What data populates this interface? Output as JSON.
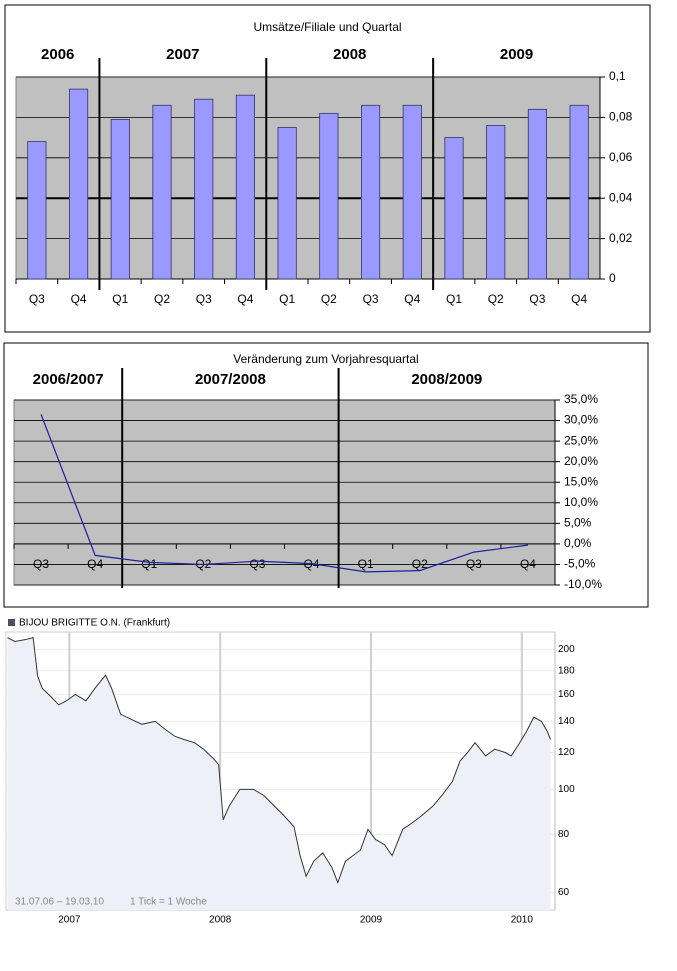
{
  "chart_data": [
    {
      "type": "bar",
      "title": "Umsätze/Filiale und Quartal",
      "group_labels": [
        "2006",
        "2007",
        "2008",
        "2009"
      ],
      "categories": [
        "Q3",
        "Q4",
        "Q1",
        "Q2",
        "Q3",
        "Q4",
        "Q1",
        "Q2",
        "Q3",
        "Q4",
        "Q1",
        "Q2",
        "Q3",
        "Q4"
      ],
      "values": [
        0.068,
        0.094,
        0.079,
        0.086,
        0.089,
        0.091,
        0.075,
        0.082,
        0.086,
        0.086,
        0.07,
        0.076,
        0.084,
        0.086
      ],
      "color": "#9999ff",
      "ylim": [
        0,
        0.1
      ],
      "yticks": [
        0,
        {
          "value": 0.02,
          "label": "0,02"
        },
        {
          "value": 0.04,
          "label": "0,04"
        },
        {
          "value": 0.06,
          "label": "0,06"
        },
        {
          "value": 0.08,
          "label": "0,08"
        },
        {
          "value": 0.1,
          "label": "0,1"
        }
      ],
      "reference_line": 0.04,
      "grid": true
    },
    {
      "type": "line",
      "title": "Veränderung zum Vorjahresquartal",
      "group_labels": [
        "2006/2007",
        "2007/2008",
        "2008/2009"
      ],
      "categories": [
        "Q3",
        "Q4",
        "Q1",
        "Q2",
        "Q3",
        "Q4",
        "Q1",
        "Q2",
        "Q3",
        "Q4"
      ],
      "values": [
        31.5,
        -2.8,
        -4.5,
        -5.0,
        -4.2,
        -4.8,
        -6.8,
        -6.5,
        -2.0,
        -0.3
      ],
      "color": "#1f1fa0",
      "ylim": [
        -10,
        35
      ],
      "yticks": [
        {
          "value": -10,
          "label": "-10,0%"
        },
        {
          "value": -5,
          "label": "-5,0%"
        },
        {
          "value": 0,
          "label": "0,0%"
        },
        {
          "value": 5,
          "label": "5,0%"
        },
        {
          "value": 10,
          "label": "10,0%"
        },
        {
          "value": 15,
          "label": "15,0%"
        },
        {
          "value": 20,
          "label": "20,0%"
        },
        {
          "value": 25,
          "label": "25,0%"
        },
        {
          "value": 30,
          "label": "30,0%"
        },
        {
          "value": 35,
          "label": "35,0%"
        }
      ],
      "grid": true
    },
    {
      "type": "line",
      "annotations": [
        "31.07.06 – 19.03.10",
        "1 Tick = 1 Woche"
      ],
      "x": [
        2006.59,
        2006.64,
        2006.71,
        2006.76,
        2006.79,
        2006.82,
        2006.88,
        2006.93,
        2006.98,
        2007.04,
        2007.11,
        2007.17,
        2007.24,
        2007.28,
        2007.34,
        2007.4,
        2007.48,
        2007.57,
        2007.63,
        2007.7,
        2007.76,
        2007.83,
        2007.89,
        2007.96,
        2007.99,
        2008.02,
        2008.06,
        2008.13,
        2008.22,
        2008.29,
        2008.36,
        2008.42,
        2008.49,
        2008.53,
        2008.57,
        2008.62,
        2008.68,
        2008.74,
        2008.78,
        2008.83,
        2008.88,
        2008.93,
        2008.98,
        2009.03,
        2009.09,
        2009.14,
        2009.21,
        2009.28,
        2009.34,
        2009.41,
        2009.47,
        2009.54,
        2009.59,
        2009.64,
        2009.69,
        2009.76,
        2009.82,
        2009.89,
        2009.93,
        2009.98,
        2010.03,
        2010.08,
        2010.13,
        2010.17,
        2010.19
      ],
      "series": [
        {
          "name": "BIJOU BRIGITTE O.N. (Frankfurt)",
          "color": "#333333",
          "values": [
            212,
            208,
            210,
            212,
            175,
            165,
            158,
            152,
            155,
            160,
            155,
            165,
            176,
            165,
            145,
            142,
            138,
            140,
            135,
            130,
            128,
            126,
            122,
            116,
            113,
            86,
            92,
            100,
            100,
            97,
            92,
            88,
            83,
            72,
            65,
            70,
            73,
            68,
            63,
            70,
            72,
            74,
            82,
            78,
            76,
            72,
            82,
            85,
            88,
            92,
            97,
            104,
            115,
            120,
            126,
            118,
            122,
            120,
            118,
            125,
            133,
            143,
            140,
            133,
            128
          ]
        }
      ],
      "xlim": [
        2006.58,
        2010.22
      ],
      "xticks": [
        2007,
        2008,
        2009,
        2010
      ],
      "ylim": [
        55,
        218
      ],
      "yticks": [
        60,
        80,
        100,
        120,
        140,
        160,
        180,
        200
      ],
      "log_scale": true,
      "grid": true
    }
  ]
}
